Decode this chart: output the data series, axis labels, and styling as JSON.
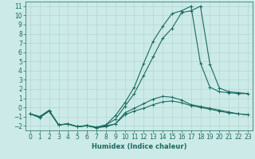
{
  "title": "",
  "xlabel": "Humidex (Indice chaleur)",
  "background_color": "#cceae7",
  "grid_color": "#aad4d0",
  "line_color": "#1a6b60",
  "xlim": [
    -0.5,
    23.5
  ],
  "ylim": [
    -2.5,
    11.5
  ],
  "xticks": [
    0,
    1,
    2,
    3,
    4,
    5,
    6,
    7,
    8,
    9,
    10,
    11,
    12,
    13,
    14,
    15,
    16,
    17,
    18,
    19,
    20,
    21,
    22,
    23
  ],
  "yticks": [
    -2,
    -1,
    0,
    1,
    2,
    3,
    4,
    5,
    6,
    7,
    8,
    9,
    10,
    11
  ],
  "series": [
    {
      "x": [
        0,
        1,
        2,
        3,
        4,
        5,
        6,
        7,
        8,
        9,
        10,
        11,
        12,
        13,
        14,
        15,
        16,
        17,
        18,
        19,
        20,
        21,
        22,
        23
      ],
      "y": [
        -0.7,
        -1.1,
        -0.4,
        -1.9,
        -1.8,
        -2.1,
        -2.0,
        -2.2,
        -2.0,
        -1.8,
        -0.8,
        -0.4,
        -0.1,
        0.3,
        0.6,
        0.7,
        0.5,
        0.2,
        0.0,
        -0.2,
        -0.4,
        -0.6,
        -0.7,
        -0.8
      ]
    },
    {
      "x": [
        0,
        1,
        2,
        3,
        4,
        5,
        6,
        7,
        8,
        9,
        10,
        11,
        12,
        13,
        14,
        15,
        16,
        17,
        18,
        19,
        20,
        21,
        22,
        23
      ],
      "y": [
        -0.7,
        -1.1,
        -0.4,
        -1.9,
        -1.8,
        -2.1,
        -2.0,
        -2.2,
        -2.1,
        -1.8,
        -0.6,
        -0.1,
        0.4,
        0.9,
        1.2,
        1.1,
        0.8,
        0.3,
        0.1,
        -0.1,
        -0.3,
        -0.5,
        -0.7,
        -0.8
      ]
    },
    {
      "x": [
        0,
        1,
        2,
        3,
        4,
        5,
        6,
        7,
        8,
        9,
        10,
        11,
        12,
        13,
        14,
        15,
        16,
        17,
        18,
        19,
        20,
        21,
        22,
        23
      ],
      "y": [
        -0.7,
        -1.0,
        -0.4,
        -1.9,
        -1.8,
        -2.1,
        -1.95,
        -2.15,
        -1.9,
        -1.3,
        0.1,
        1.5,
        3.5,
        5.5,
        7.5,
        8.6,
        10.3,
        10.5,
        11.0,
        4.7,
        2.1,
        1.7,
        1.6,
        1.5
      ]
    },
    {
      "x": [
        0,
        1,
        2,
        3,
        4,
        5,
        6,
        7,
        8,
        9,
        10,
        11,
        12,
        13,
        14,
        15,
        16,
        17,
        18,
        19,
        20,
        21,
        22,
        23
      ],
      "y": [
        -0.7,
        -1.0,
        -0.3,
        -1.9,
        -1.8,
        -2.1,
        -2.0,
        -2.2,
        -1.9,
        -0.9,
        0.5,
        2.2,
        4.8,
        7.2,
        8.8,
        10.2,
        10.5,
        11.0,
        4.8,
        2.2,
        1.7,
        1.6,
        1.5,
        1.5
      ]
    }
  ],
  "marker_size": 3,
  "line_width": 0.8,
  "font_size_label": 6,
  "font_size_tick": 5.5
}
